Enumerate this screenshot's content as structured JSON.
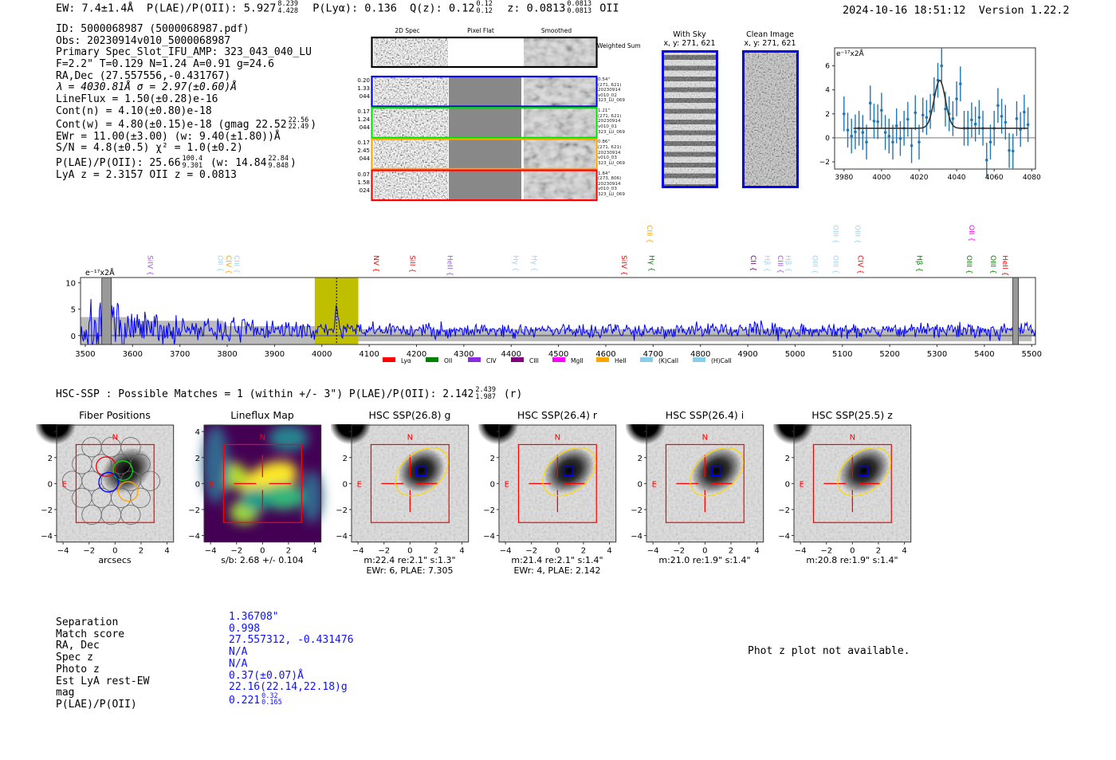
{
  "header": {
    "ew": "EW: 7.4±1.4Å",
    "plae_label": "P(LAE)/P(OII): 5.927",
    "plae_hi": "8.239",
    "plae_lo": "4.428",
    "plya": "P(Lyα): 0.136",
    "qz": "Q(z): 0.12",
    "qz_hi": "0.12",
    "qz_lo": "0.12",
    "z": "z: 0.0813",
    "z_hi": "0.0813",
    "z_lo": "0.0813",
    "z_line": "OII",
    "datetime": "2024-10-16 18:51:12",
    "version": "Version 1.22.2"
  },
  "info": {
    "id": "ID: 5000068987 (5000068987.pdf)",
    "obs": "Obs: 20230914v010_5000068987",
    "primary": "Primary Spec_Slot_IFU_AMP: 323_043_040_LU",
    "params": "F=2.2\"  T=0.129  N=1.24  A=0.91  g=24.6",
    "radec": "RA,Dec (27.557556,-0.431767)",
    "lambda": "λ = 4030.81Å  σ = 2.97(±0.60)Å",
    "lineflux": "LineFlux = 1.50(±0.28)e-16",
    "cont_n": "Cont(n) = 4.10(±0.80)e-18",
    "cont_w": "Cont(w) = 4.80(±0.15)e-18 (gmag 22.52",
    "gmag_hi": "22.56",
    "gmag_lo": "22.49",
    "close": ")",
    "ewr": "EWr = 11.00(±3.00) (w: 9.40(±1.80))Å",
    "sn": "S/N = 4.8(±0.5)  χ² = 1.0(±0.2)",
    "plae": "P(LAE)/P(OII): 25.66",
    "plae_hi": "100.4",
    "plae_lo": "9.301",
    "plae_w": "(w: 14.84",
    "plae_w_hi": "22.84",
    "plae_w_lo": "9.848",
    "z": "LyA z = 2.3157   OII z = 0.0813"
  },
  "spec2d": {
    "headers": [
      "2D Spec",
      "Pixel Flat",
      "Smoothed"
    ],
    "weighted_label": "Weighted Sum",
    "rows": [
      {
        "color": "#0000ff",
        "left": [
          "0.20",
          "1.33",
          "044"
        ],
        "right": [
          "0.54\"",
          "(271, 621)",
          "20230914",
          "v010_02",
          "323_LU_069"
        ]
      },
      {
        "color": "#00e000",
        "left": [
          "0.17",
          "1.24",
          "044"
        ],
        "right": [
          "1.21\"",
          "(271, 621)",
          "20230914",
          "v010_01",
          "323_LU_069"
        ]
      },
      {
        "color": "#ffa500",
        "left": [
          "0.17",
          "2.45",
          "044"
        ],
        "right": [
          "0.86\"",
          "(271, 621)",
          "20230914",
          "v010_03",
          "323_LU_069"
        ]
      },
      {
        "color": "#ff0000",
        "left": [
          "0.07",
          "1.58",
          "024"
        ],
        "right": [
          "1.84\"",
          "(273, 806)",
          "20230914",
          "v010_03",
          "323_LU_069"
        ]
      }
    ]
  },
  "sky": {
    "with_sky_title": "With Sky",
    "with_sky_xy": "x, y: 271, 621",
    "clean_title": "Clean Image",
    "clean_xy": "x, y: 271, 621"
  },
  "chart_data": [
    {
      "type": "scatter",
      "name": "line-fit",
      "ylabel": "e⁻¹⁷x2Å",
      "xlim": [
        3975,
        4082
      ],
      "ylim": [
        -2.6,
        7.5
      ],
      "xticks": [
        3980,
        4000,
        4020,
        4040,
        4060,
        4080
      ],
      "yticks": [
        -2,
        0,
        2,
        4,
        6
      ],
      "x": [
        3980,
        3982,
        3984,
        3986,
        3988,
        3990,
        3992,
        3994,
        3996,
        3998,
        4000,
        4002,
        4004,
        4006,
        4008,
        4010,
        4012,
        4014,
        4016,
        4018,
        4020,
        4022,
        4024,
        4026,
        4028,
        4030,
        4032,
        4034,
        4036,
        4038,
        4040,
        4042,
        4044,
        4046,
        4048,
        4050,
        4052,
        4054,
        4056,
        4058,
        4060,
        4062,
        4064,
        4066,
        4068,
        4070,
        4072,
        4074,
        4076,
        4078
      ],
      "y": [
        2.0,
        0.65,
        0.15,
        0.5,
        0.8,
        0.45,
        -0.35,
        2.9,
        1.4,
        1.35,
        2.3,
        0.45,
        0.15,
        -0.35,
        1.0,
        -0.05,
        0.8,
        1.55,
        -0.65,
        2.1,
        -0.35,
        1.9,
        1.7,
        2.2,
        3.6,
        4.8,
        6.0,
        2.4,
        2.0,
        1.6,
        3.25,
        4.5,
        0.8,
        0.8,
        1.5,
        1.15,
        1.7,
        0.8,
        -1.85,
        -0.35,
        0.8,
        2.7,
        1.8,
        1.3,
        -1.05,
        -1.1,
        1.6,
        0.7,
        2.15,
        1.1
      ],
      "yerr": 1.45,
      "fit": {
        "center": 4031,
        "sigma": 2.97,
        "amplitude": 4.0,
        "continuum": 0.8,
        "range": [
          3985,
          4078
        ]
      }
    },
    {
      "type": "line",
      "name": "full-spectrum",
      "ylabel": "e⁻¹⁷x2Å",
      "xlim": [
        3490,
        5508
      ],
      "ylim": [
        -1.7,
        11
      ],
      "xticks": [
        3500,
        3600,
        3700,
        3800,
        3900,
        4000,
        4100,
        4200,
        4300,
        4400,
        4500,
        4600,
        4700,
        4800,
        4900,
        5000,
        5100,
        5200,
        5300,
        5400,
        5500
      ],
      "yticks": [
        0,
        5,
        10
      ],
      "highlight_range": [
        3985,
        4077
      ],
      "emission_wavelength": 4031,
      "masked_ranges": [
        [
          3535,
          3555
        ],
        [
          5460,
          5472
        ]
      ],
      "legend": [
        {
          "label": "Lyα",
          "color": "#ff0000"
        },
        {
          "label": "OII",
          "color": "#008000"
        },
        {
          "label": "CIV",
          "color": "#8a2be2"
        },
        {
          "label": "CIII",
          "color": "#800080"
        },
        {
          "label": "MgII",
          "color": "#ff00ff"
        },
        {
          "label": "HeII",
          "color": "#ffa500"
        },
        {
          "label": "(K)CaII",
          "color": "#87ceeb"
        },
        {
          "label": "(H)CaII",
          "color": "#87ceeb"
        }
      ],
      "line_marks": [
        {
          "label": "SiIV",
          "wave": 3637,
          "color": "#9b59e0",
          "row": 0
        },
        {
          "label": "OII",
          "wave": 3786,
          "color": "#9fd4ee",
          "row": 0
        },
        {
          "label": "CIV",
          "wave": 3803,
          "color": "#ffa500",
          "row": 0
        },
        {
          "label": "CIII",
          "wave": 3820,
          "color": "#9fd4ee",
          "row": 0
        },
        {
          "label": "NV",
          "wave": 4115,
          "color": "#ff0000",
          "row": 0
        },
        {
          "label": "SiII",
          "wave": 4192,
          "color": "#ff0000",
          "row": 0
        },
        {
          "label": "HeII",
          "wave": 4271,
          "color": "#9b59e0",
          "row": 0
        },
        {
          "label": "Hγ",
          "wave": 4410,
          "color": "#9fd4ee",
          "row": 0
        },
        {
          "label": "Hγ",
          "wave": 4449,
          "color": "#9fd4ee",
          "row": 0
        },
        {
          "label": "SiIV",
          "wave": 4639,
          "color": "#ff0000",
          "row": 0
        },
        {
          "label": "CIII",
          "wave": 4693,
          "color": "#ffa500",
          "row": 1
        },
        {
          "label": "Hγ",
          "wave": 4697,
          "color": "#008000",
          "row": 0
        },
        {
          "label": "CII",
          "wave": 4912,
          "color": "#800080",
          "row": 0
        },
        {
          "label": "Hβ",
          "wave": 4941,
          "color": "#9fd4ee",
          "row": 0
        },
        {
          "label": "CIII",
          "wave": 4969,
          "color": "#9b59e0",
          "row": 0
        },
        {
          "label": "Hβ",
          "wave": 4986,
          "color": "#9fd4ee",
          "row": 0
        },
        {
          "label": "OIII",
          "wave": 5042,
          "color": "#9fd4ee",
          "row": 0
        },
        {
          "label": "OIII",
          "wave": 5086,
          "color": "#9fd4ee",
          "row": 0
        },
        {
          "label": "OIII",
          "wave": 5086,
          "color": "#9fd4ee",
          "row": 1
        },
        {
          "label": "OIII",
          "wave": 5132,
          "color": "#9fd4ee",
          "row": 1
        },
        {
          "label": "CIV",
          "wave": 5138,
          "color": "#ff0000",
          "row": 0
        },
        {
          "label": "Hβ",
          "wave": 5263,
          "color": "#008000",
          "row": 0
        },
        {
          "label": "OIII",
          "wave": 5368,
          "color": "#008000",
          "row": 0
        },
        {
          "label": "OII",
          "wave": 5373,
          "color": "#ff00ff",
          "row": 1
        },
        {
          "label": "OIII",
          "wave": 5419,
          "color": "#008000",
          "row": 0
        },
        {
          "label": "HeII",
          "wave": 5444,
          "color": "#ff0000",
          "row": 0
        }
      ]
    }
  ],
  "hsc": {
    "title": "HSC-SSP : Possible Matches = 1 (within +/- 3\")  P(LAE)/P(OII): 2.142",
    "plae_hi": "2.439",
    "plae_lo": "1.987",
    "band": "(r)",
    "ticks": [
      "4",
      "2",
      "0",
      "−2",
      "−4"
    ],
    "xticks": [
      "−4",
      "−2",
      "0",
      "2",
      "4"
    ],
    "panels": [
      {
        "title": "Fiber Positions",
        "kind": "fiber",
        "cap1": "arcsecs",
        "cap2": ""
      },
      {
        "title": "Lineflux Map",
        "kind": "flux",
        "cap1": "s/b: 2.68 +/- 0.104",
        "cap2": ""
      },
      {
        "title": "HSC SSP(26.8) g",
        "kind": "hsc",
        "cap1": "m:22.4  re:2.1\"  s:1.3\"",
        "cap2": "EWr: 6, PLAE: 7.305"
      },
      {
        "title": "HSC SSP(26.4) r",
        "kind": "hsc",
        "cap1": "m:21.4  re:2.1\"  s:1.4\"",
        "cap2": "EWr: 4, PLAE: 2.142"
      },
      {
        "title": "HSC SSP(26.4) i",
        "kind": "hsc",
        "cap1": "m:21.0  re:1.9\"  s:1.4\"",
        "cap2": ""
      },
      {
        "title": "HSC SSP(25.5) z",
        "kind": "hsc",
        "cap1": "m:20.8  re:1.9\"  s:1.4\"",
        "cap2": ""
      }
    ],
    "compass_n": "N",
    "compass_e": "E"
  },
  "match": {
    "rows": [
      {
        "label": "Separation",
        "value": "1.36708\""
      },
      {
        "label": "Match score",
        "value": "0.998"
      },
      {
        "label": "RA, Dec",
        "value": "27.557312, -0.431476"
      },
      {
        "label": "Spec z",
        "value": "N/A"
      },
      {
        "label": "Photo z",
        "value": "N/A"
      },
      {
        "label": "Est LyA rest-EW",
        "value": "0.37(±0.07)Å"
      },
      {
        "label": "mag",
        "value": "22.16(22.14,22.18)g"
      },
      {
        "label": "P(LAE)/P(OII)",
        "value": "0.221"
      }
    ],
    "plae_hi": "0.32",
    "plae_lo": "0.165",
    "photz_note": "Phot z plot not available."
  }
}
